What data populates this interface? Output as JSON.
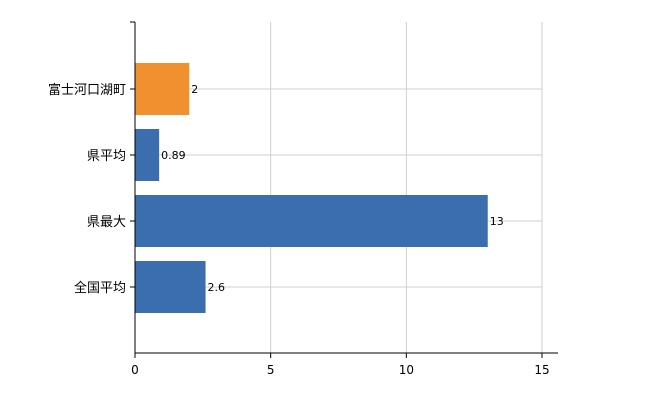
{
  "chart_data": {
    "type": "bar",
    "orientation": "horizontal",
    "categories": [
      "富士河口湖町",
      "県平均",
      "県最大",
      "全国平均"
    ],
    "values": [
      2,
      0.89,
      13,
      2.6
    ],
    "value_labels": [
      "2",
      "0.89",
      "13",
      "2.6"
    ],
    "bar_colors": [
      "#F0902F",
      "#3A6EAF",
      "#3A6EAF",
      "#3A6EAF"
    ],
    "xlim": [
      0,
      15
    ],
    "xticks": [
      0,
      5,
      10,
      15
    ],
    "grid": true,
    "title": "",
    "xlabel": "",
    "ylabel": ""
  }
}
